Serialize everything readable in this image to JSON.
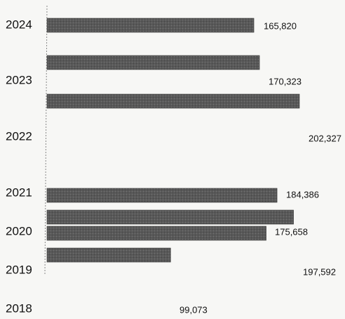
{
  "chart_data": {
    "type": "bar",
    "orientation": "horizontal",
    "categories": [
      "2024",
      "2023",
      "2022",
      "2021",
      "2020",
      "2019",
      "2018"
    ],
    "values": [
      165820,
      170323,
      202327,
      184386,
      175658,
      197592,
      99073
    ],
    "value_labels": [
      "165,820",
      "170,323",
      "202,327",
      "184,386",
      "175,658",
      "197,592",
      "99,073"
    ],
    "color": "#595959"
  }
}
